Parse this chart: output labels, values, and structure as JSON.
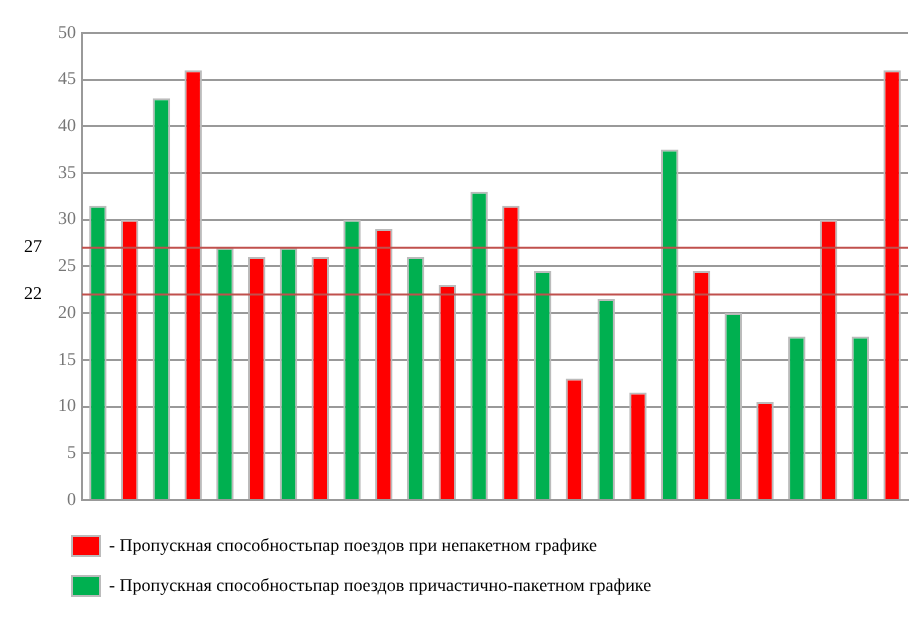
{
  "chart_data": {
    "type": "bar",
    "categories": [
      null,
      null,
      null,
      null,
      null,
      null,
      null,
      null,
      null,
      null,
      null,
      null,
      null
    ],
    "series": [
      {
        "name": "- Пропускная способностьпар поездов причастично-пакетном графике",
        "color": "#00b050",
        "values": [
          31.5,
          43,
          27,
          27,
          30,
          26,
          33,
          24.5,
          21.5,
          37.5,
          20,
          17.5,
          17.5
        ]
      },
      {
        "name": "- Пропускная способностьпар поездов при непакетном графике",
        "color": "#ff0000",
        "values": [
          30,
          46,
          26,
          26,
          29,
          23,
          31.5,
          13,
          11.5,
          24.5,
          10.5,
          30,
          46
        ]
      }
    ],
    "ylim": [
      0,
      50
    ],
    "yticks": [
      0,
      5,
      10,
      15,
      20,
      25,
      30,
      35,
      40,
      45,
      50
    ],
    "grid": "y",
    "legend": "bottom",
    "tick_labels": "y",
    "ref_lines": [
      {
        "axis": "y",
        "value": 27,
        "label": "27",
        "color": "#c0504d"
      },
      {
        "axis": "y",
        "value": 22,
        "label": "22",
        "color": "#c0504d"
      }
    ]
  }
}
